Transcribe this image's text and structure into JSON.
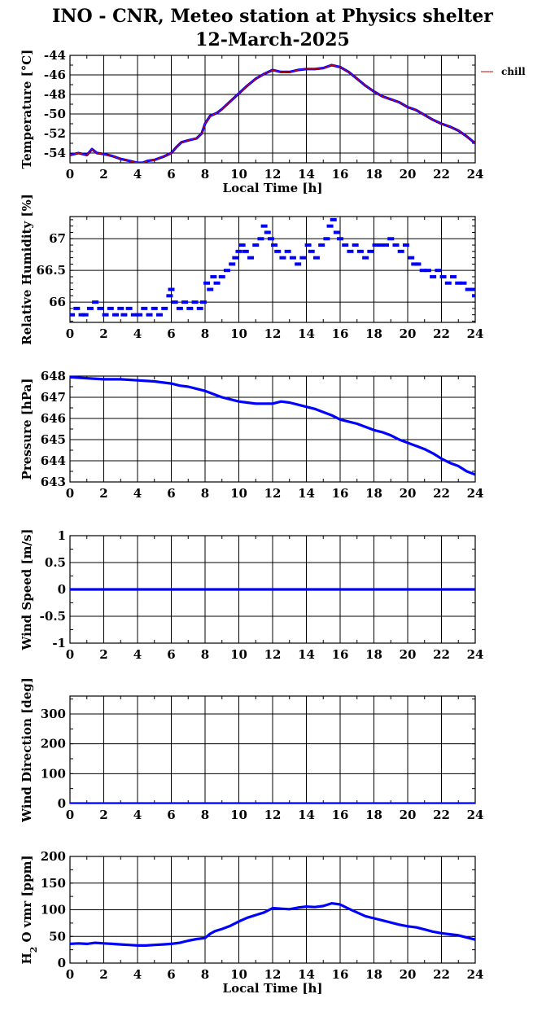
{
  "title_line1": "INO - CNR, Meteo station at Physics shelter",
  "title_line2": "12-March-2025",
  "colors": {
    "data": "#0000ff",
    "chill": "#dd0000",
    "grid": "#000000"
  },
  "chart_data": [
    {
      "id": "temperature",
      "type": "line",
      "ylabel": "Temperature [°C]",
      "xlabel": "Local Time [h]",
      "xlim": [
        0,
        24
      ],
      "ylim": [
        -55,
        -44
      ],
      "yticks": [
        -54,
        -52,
        -50,
        -48,
        -46,
        -44
      ],
      "ytick_labels": [
        "-54",
        "-52",
        "-50",
        "-48",
        "-46",
        "-44"
      ],
      "minor_y": 1,
      "legend": {
        "label": "chill",
        "placement": "right"
      },
      "series": [
        {
          "x": [
            0,
            0.5,
            1,
            1.3,
            1.6,
            2,
            2.5,
            3,
            3.5,
            4,
            4.3,
            4.6,
            5,
            5.5,
            6,
            6.3,
            6.6,
            7,
            7.5,
            7.8,
            8,
            8.3,
            8.7,
            9,
            9.5,
            10,
            10.5,
            11,
            11.5,
            12,
            12.5,
            13,
            13.5,
            14,
            14.5,
            15,
            15.5,
            16,
            16.5,
            17,
            17.5,
            18,
            18.5,
            19,
            19.5,
            20,
            20.5,
            21,
            21.5,
            22,
            22.5,
            23,
            23.5,
            24
          ],
          "y": [
            -54.2,
            -54.0,
            -54.2,
            -53.6,
            -54.0,
            -54.1,
            -54.3,
            -54.6,
            -54.8,
            -55.0,
            -55.0,
            -54.8,
            -54.7,
            -54.4,
            -54.0,
            -53.4,
            -52.9,
            -52.7,
            -52.5,
            -52.0,
            -51.0,
            -50.2,
            -49.9,
            -49.5,
            -48.7,
            -47.9,
            -47.1,
            -46.4,
            -45.9,
            -45.5,
            -45.7,
            -45.7,
            -45.5,
            -45.4,
            -45.4,
            -45.3,
            -45.0,
            -45.2,
            -45.7,
            -46.4,
            -47.1,
            -47.7,
            -48.2,
            -48.5,
            -48.8,
            -49.3,
            -49.6,
            -50.1,
            -50.6,
            -51.0,
            -51.3,
            -51.7,
            -52.3,
            -53.0
          ]
        }
      ]
    },
    {
      "id": "humidity",
      "type": "scatter",
      "ylabel": "Relative Humidity [%]",
      "xlabel": "",
      "xlim": [
        0,
        24
      ],
      "ylim": [
        65.68,
        67.35
      ],
      "yticks": [
        66,
        66.5,
        67
      ],
      "ytick_labels": [
        "66",
        "66.5",
        "67"
      ],
      "minor_y": 0.1,
      "series": [
        {
          "x": [
            0.1,
            0.4,
            0.7,
            0.9,
            1.2,
            1.5,
            1.8,
            2.1,
            2.4,
            2.7,
            3.0,
            3.2,
            3.5,
            3.8,
            4.1,
            4.4,
            4.7,
            5.0,
            5.3,
            5.6,
            5.9,
            6.0,
            6.2,
            6.5,
            6.8,
            7.1,
            7.4,
            7.7,
            7.9,
            8.1,
            8.3,
            8.5,
            8.7,
            9.0,
            9.3,
            9.6,
            9.8,
            10.0,
            10.2,
            10.4,
            10.7,
            11.0,
            11.3,
            11.5,
            11.7,
            11.9,
            12.1,
            12.3,
            12.6,
            12.9,
            13.2,
            13.5,
            13.8,
            14.1,
            14.3,
            14.6,
            14.9,
            15.2,
            15.4,
            15.6,
            15.8,
            16.0,
            16.3,
            16.6,
            16.9,
            17.2,
            17.5,
            17.8,
            18.1,
            18.4,
            18.7,
            19.0,
            19.3,
            19.6,
            19.9,
            20.2,
            20.4,
            20.6,
            20.9,
            21.2,
            21.5,
            21.8,
            22.1,
            22.4,
            22.7,
            23.0,
            23.3,
            23.6,
            23.9,
            24.0
          ],
          "y": [
            65.8,
            65.9,
            65.8,
            65.8,
            65.9,
            66.0,
            65.9,
            65.8,
            65.9,
            65.8,
            65.9,
            65.8,
            65.9,
            65.8,
            65.8,
            65.9,
            65.8,
            65.9,
            65.8,
            65.9,
            66.1,
            66.2,
            66.0,
            65.9,
            66.0,
            65.9,
            66.0,
            65.9,
            66.0,
            66.3,
            66.2,
            66.4,
            66.3,
            66.4,
            66.5,
            66.6,
            66.7,
            66.8,
            66.9,
            66.8,
            66.7,
            66.9,
            67.0,
            67.2,
            67.1,
            67.0,
            66.9,
            66.8,
            66.7,
            66.8,
            66.7,
            66.6,
            66.7,
            66.9,
            66.8,
            66.7,
            66.9,
            67.0,
            67.2,
            67.3,
            67.1,
            67.0,
            66.9,
            66.8,
            66.9,
            66.8,
            66.7,
            66.8,
            66.9,
            66.9,
            66.9,
            67.0,
            66.9,
            66.8,
            66.9,
            66.7,
            66.6,
            66.6,
            66.5,
            66.5,
            66.4,
            66.5,
            66.4,
            66.3,
            66.4,
            66.3,
            66.3,
            66.2,
            66.2,
            66.1
          ]
        }
      ]
    },
    {
      "id": "pressure",
      "type": "line",
      "ylabel": "Pressure [hPa]",
      "xlabel": "",
      "xlim": [
        0,
        24
      ],
      "ylim": [
        643,
        648
      ],
      "yticks": [
        643,
        644,
        645,
        646,
        647,
        648
      ],
      "ytick_labels": [
        "643",
        "644",
        "645",
        "646",
        "647",
        "648"
      ],
      "minor_y": 0.5,
      "series": [
        {
          "x": [
            0,
            1,
            2,
            3,
            4,
            5,
            6,
            6.5,
            7,
            7.5,
            8,
            8.5,
            9,
            9.5,
            10,
            10.5,
            11,
            11.5,
            12,
            12.5,
            13,
            13.5,
            14,
            14.5,
            15,
            15.5,
            16,
            16.5,
            17,
            17.5,
            18,
            18.5,
            19,
            19.5,
            20,
            20.5,
            21,
            21.5,
            22,
            22.5,
            23,
            23.5,
            24
          ],
          "y": [
            647.95,
            647.9,
            647.85,
            647.85,
            647.8,
            647.75,
            647.65,
            647.55,
            647.5,
            647.4,
            647.3,
            647.15,
            647.0,
            646.9,
            646.8,
            646.75,
            646.7,
            646.7,
            646.7,
            646.8,
            646.75,
            646.65,
            646.55,
            646.45,
            646.3,
            646.15,
            645.95,
            645.85,
            645.75,
            645.6,
            645.45,
            645.35,
            645.2,
            645.0,
            644.85,
            644.7,
            644.55,
            644.35,
            644.1,
            643.9,
            643.75,
            643.5,
            643.35
          ]
        }
      ]
    },
    {
      "id": "wind_speed",
      "type": "line",
      "ylabel": "Wind Speed [m/s]",
      "xlabel": "",
      "xlim": [
        0,
        24
      ],
      "ylim": [
        -1,
        1
      ],
      "yticks": [
        -1,
        -0.5,
        0,
        0.5,
        1
      ],
      "ytick_labels": [
        "-1",
        "-0.5",
        "0",
        "0.5",
        "1"
      ],
      "minor_y": 0.25,
      "series": [
        {
          "x": [
            0,
            24
          ],
          "y": [
            0,
            0
          ]
        }
      ]
    },
    {
      "id": "wind_direction",
      "type": "line",
      "ylabel": "Wind Direction [deg]",
      "xlabel": "",
      "xlim": [
        0,
        24
      ],
      "ylim": [
        0,
        360
      ],
      "yticks": [
        0,
        100,
        200,
        300
      ],
      "ytick_labels": [
        "0",
        "100",
        "200",
        "300"
      ],
      "minor_y": 50,
      "series": [
        {
          "x": [
            0,
            24
          ],
          "y": [
            0,
            0
          ]
        }
      ]
    },
    {
      "id": "h2o",
      "type": "line",
      "ylabel": "H2O vmr [ppm]",
      "ylabel_parts": [
        "H",
        "2",
        " O vmr [ppm]"
      ],
      "xlabel": "Local Time [h]",
      "xlim": [
        0,
        24
      ],
      "ylim": [
        0,
        200
      ],
      "yticks": [
        0,
        50,
        100,
        150,
        200
      ],
      "ytick_labels": [
        "0",
        "50",
        "100",
        "150",
        "200"
      ],
      "minor_y": 25,
      "series": [
        {
          "x": [
            0,
            0.5,
            1,
            1.5,
            2,
            2.5,
            3,
            3.5,
            4,
            4.5,
            5,
            5.5,
            6,
            6.5,
            7,
            7.5,
            8,
            8.3,
            8.6,
            9,
            9.5,
            10,
            10.5,
            11,
            11.5,
            12,
            12.5,
            13,
            13.5,
            14,
            14.5,
            15,
            15.5,
            16,
            16.5,
            17,
            17.5,
            18,
            18.5,
            19,
            19.5,
            20,
            20.5,
            21,
            21.5,
            22,
            22.5,
            23,
            23.5,
            24
          ],
          "y": [
            36,
            37,
            36,
            38,
            37,
            36,
            35,
            34,
            33,
            33,
            34,
            35,
            36,
            38,
            42,
            45,
            47,
            55,
            60,
            64,
            70,
            78,
            85,
            90,
            95,
            103,
            102,
            101,
            104,
            106,
            105,
            107,
            112,
            110,
            102,
            95,
            88,
            84,
            80,
            76,
            72,
            69,
            67,
            63,
            59,
            56,
            54,
            52,
            48,
            44
          ]
        }
      ]
    }
  ]
}
